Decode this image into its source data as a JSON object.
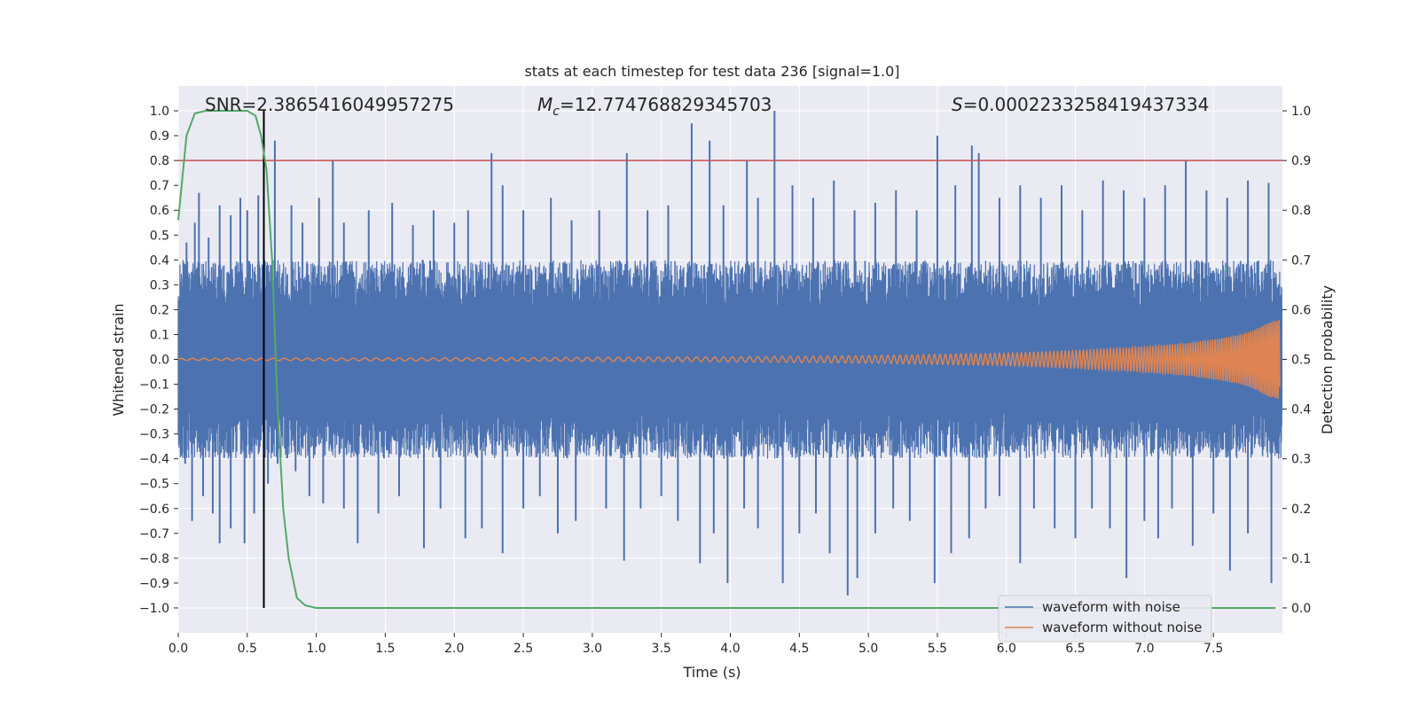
{
  "chart_data": {
    "type": "line",
    "title": "stats at each timestep for test data 236 [signal=1.0]",
    "xlabel": "Time (s)",
    "ylabel": "Whitened strain",
    "y2label": "Detection probability",
    "xlim": [
      0.0,
      8.0
    ],
    "ylim": [
      -1.1,
      1.1
    ],
    "y2lim": [
      -0.05,
      1.05
    ],
    "xticks": [
      "0.0",
      "0.5",
      "1.0",
      "1.5",
      "2.0",
      "2.5",
      "3.0",
      "3.5",
      "4.0",
      "4.5",
      "5.0",
      "5.5",
      "6.0",
      "6.5",
      "7.0",
      "7.5"
    ],
    "yticks": [
      "1.0",
      "0.9",
      "0.8",
      "0.7",
      "0.6",
      "0.5",
      "0.4",
      "0.3",
      "0.2",
      "0.1",
      "0.0",
      "−0.1",
      "−0.2",
      "−0.3",
      "−0.4",
      "−0.5",
      "−0.6",
      "−0.7",
      "−0.8",
      "−0.9",
      "−1.0"
    ],
    "y2ticks": [
      "1.0",
      "0.9",
      "0.8",
      "0.7",
      "0.6",
      "0.5",
      "0.4",
      "0.3",
      "0.2",
      "0.1",
      "0.0"
    ],
    "grid": true,
    "legend_position": "lower-right",
    "annotations": {
      "snr": "SNR=2.3865416049957275",
      "mc_symbol": "M",
      "mc_sub": "c",
      "mc_value": "=12.774768829345703",
      "s_symbol": "S",
      "s_value": "=0.0002233258419437334"
    },
    "threshold_line": {
      "y": 0.8,
      "color": "#c44e52"
    },
    "vertical_marker": {
      "x": 0.62,
      "color": "#000000"
    },
    "series": [
      {
        "name": "waveform with noise",
        "color": "#4c72b0",
        "description_values": "dense noise band roughly between -0.25 and 0.25 with spikes",
        "spikes_positive": [
          [
            0.06,
            0.47
          ],
          [
            0.12,
            0.55
          ],
          [
            0.15,
            0.67
          ],
          [
            0.22,
            0.49
          ],
          [
            0.3,
            0.62
          ],
          [
            0.38,
            0.58
          ],
          [
            0.45,
            0.65
          ],
          [
            0.5,
            0.6
          ],
          [
            0.58,
            0.66
          ],
          [
            0.7,
            0.88
          ],
          [
            0.82,
            0.62
          ],
          [
            0.9,
            0.55
          ],
          [
            1.02,
            0.65
          ],
          [
            1.12,
            0.8
          ],
          [
            1.2,
            0.55
          ],
          [
            1.38,
            0.6
          ],
          [
            1.55,
            0.63
          ],
          [
            1.7,
            0.54
          ],
          [
            1.85,
            0.6
          ],
          [
            2.0,
            0.55
          ],
          [
            2.1,
            0.6
          ],
          [
            2.27,
            0.83
          ],
          [
            2.35,
            0.7
          ],
          [
            2.5,
            0.6
          ],
          [
            2.7,
            0.65
          ],
          [
            2.85,
            0.56
          ],
          [
            3.05,
            0.6
          ],
          [
            3.25,
            0.83
          ],
          [
            3.4,
            0.6
          ],
          [
            3.55,
            0.62
          ],
          [
            3.72,
            0.95
          ],
          [
            3.85,
            0.88
          ],
          [
            3.95,
            0.62
          ],
          [
            4.12,
            0.8
          ],
          [
            4.2,
            0.65
          ],
          [
            4.32,
            1.0
          ],
          [
            4.45,
            0.7
          ],
          [
            4.6,
            0.65
          ],
          [
            4.75,
            0.72
          ],
          [
            4.9,
            0.6
          ],
          [
            5.05,
            0.63
          ],
          [
            5.2,
            0.68
          ],
          [
            5.35,
            0.6
          ],
          [
            5.5,
            0.9
          ],
          [
            5.63,
            0.7
          ],
          [
            5.75,
            0.86
          ],
          [
            5.8,
            0.83
          ],
          [
            5.95,
            0.65
          ],
          [
            6.1,
            0.7
          ],
          [
            6.25,
            0.65
          ],
          [
            6.4,
            0.7
          ],
          [
            6.55,
            0.6
          ],
          [
            6.7,
            0.72
          ],
          [
            6.85,
            0.68
          ],
          [
            7.0,
            0.65
          ],
          [
            7.15,
            0.7
          ],
          [
            7.3,
            0.8
          ],
          [
            7.45,
            0.68
          ],
          [
            7.6,
            0.65
          ],
          [
            7.75,
            0.72
          ],
          [
            7.9,
            0.71
          ]
        ],
        "spikes_negative": [
          [
            0.05,
            -0.42
          ],
          [
            0.1,
            -0.65
          ],
          [
            0.18,
            -0.55
          ],
          [
            0.25,
            -0.62
          ],
          [
            0.3,
            -0.74
          ],
          [
            0.38,
            -0.68
          ],
          [
            0.48,
            -0.74
          ],
          [
            0.55,
            -0.62
          ],
          [
            0.65,
            -0.5
          ],
          [
            0.72,
            -0.42
          ],
          [
            0.85,
            -0.45
          ],
          [
            0.95,
            -0.55
          ],
          [
            1.05,
            -0.58
          ],
          [
            1.2,
            -0.6
          ],
          [
            1.3,
            -0.74
          ],
          [
            1.45,
            -0.62
          ],
          [
            1.6,
            -0.55
          ],
          [
            1.78,
            -0.76
          ],
          [
            1.9,
            -0.6
          ],
          [
            2.08,
            -0.72
          ],
          [
            2.2,
            -0.68
          ],
          [
            2.35,
            -0.78
          ],
          [
            2.5,
            -0.6
          ],
          [
            2.62,
            -0.55
          ],
          [
            2.75,
            -0.7
          ],
          [
            2.88,
            -0.65
          ],
          [
            3.1,
            -0.6
          ],
          [
            3.23,
            -0.81
          ],
          [
            3.35,
            -0.6
          ],
          [
            3.5,
            -0.55
          ],
          [
            3.62,
            -0.65
          ],
          [
            3.78,
            -0.82
          ],
          [
            3.88,
            -0.7
          ],
          [
            3.98,
            -0.9
          ],
          [
            4.1,
            -0.6
          ],
          [
            4.2,
            -0.68
          ],
          [
            4.38,
            -0.9
          ],
          [
            4.5,
            -0.7
          ],
          [
            4.62,
            -0.62
          ],
          [
            4.72,
            -0.78
          ],
          [
            4.85,
            -0.95
          ],
          [
            4.92,
            -0.88
          ],
          [
            5.05,
            -0.7
          ],
          [
            5.18,
            -0.6
          ],
          [
            5.3,
            -0.65
          ],
          [
            5.48,
            -0.9
          ],
          [
            5.6,
            -0.78
          ],
          [
            5.73,
            -0.72
          ],
          [
            5.85,
            -0.6
          ],
          [
            5.95,
            -0.55
          ],
          [
            6.1,
            -0.82
          ],
          [
            6.2,
            -0.6
          ],
          [
            6.35,
            -0.68
          ],
          [
            6.5,
            -0.72
          ],
          [
            6.62,
            -0.6
          ],
          [
            6.75,
            -0.68
          ],
          [
            6.87,
            -0.88
          ],
          [
            7.0,
            -0.65
          ],
          [
            7.1,
            -0.72
          ],
          [
            7.2,
            -0.6
          ],
          [
            7.35,
            -0.75
          ],
          [
            7.5,
            -0.62
          ],
          [
            7.62,
            -0.85
          ],
          [
            7.75,
            -0.7
          ],
          [
            7.92,
            -0.9
          ]
        ]
      },
      {
        "name": "waveform without noise",
        "color": "#dd8452",
        "envelope": [
          [
            0.0,
            0.004
          ],
          [
            2.0,
            0.006
          ],
          [
            4.0,
            0.01
          ],
          [
            5.0,
            0.015
          ],
          [
            6.0,
            0.025
          ],
          [
            6.5,
            0.035
          ],
          [
            7.0,
            0.05
          ],
          [
            7.3,
            0.065
          ],
          [
            7.5,
            0.08
          ],
          [
            7.7,
            0.1
          ],
          [
            7.8,
            0.12
          ],
          [
            7.9,
            0.15
          ],
          [
            7.98,
            0.16
          ]
        ]
      },
      {
        "name": "",
        "axis": "right",
        "color": "#55a868",
        "x": [
          0.0,
          0.06,
          0.12,
          0.2,
          0.3,
          0.4,
          0.5,
          0.56,
          0.6,
          0.64,
          0.68,
          0.72,
          0.76,
          0.8,
          0.86,
          0.92,
          1.0,
          1.5,
          2.0,
          3.0,
          4.0,
          5.0,
          6.0,
          7.0,
          7.95
        ],
        "y": [
          0.78,
          0.95,
          0.995,
          1.0,
          1.0,
          1.0,
          1.0,
          0.99,
          0.95,
          0.88,
          0.7,
          0.4,
          0.2,
          0.1,
          0.02,
          0.005,
          0.0,
          0.0,
          0.0,
          0.0,
          0.0,
          0.0,
          0.0,
          0.0,
          0.0
        ]
      }
    ]
  }
}
